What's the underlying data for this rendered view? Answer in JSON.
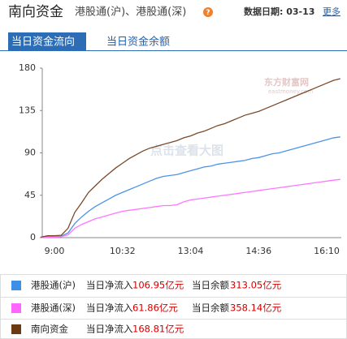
{
  "header": {
    "title": "南向资金",
    "subtitle": "港股通(沪)、港股通(深)",
    "help": "?",
    "date_label": "数据日期: 03-13",
    "more": "更多"
  },
  "tabs": [
    "当日资金流向",
    "当日资金余额"
  ],
  "chart_data": {
    "type": "line",
    "categories": [
      null,
      null,
      "9:00",
      null,
      null,
      null,
      null,
      null,
      null,
      null,
      null,
      null,
      "10:32",
      null,
      null,
      null,
      null,
      null,
      null,
      null,
      null,
      null,
      "13:04",
      null,
      null,
      null,
      null,
      null,
      null,
      null,
      null,
      null,
      "14:36",
      null,
      null,
      null,
      null,
      null,
      null,
      null,
      null,
      null,
      "16:10",
      null,
      null
    ],
    "ylim": [
      0,
      180
    ],
    "yticks": [
      0,
      45,
      90,
      135,
      180
    ],
    "watermark": "东方财富网",
    "watermark_sub": "eastmoney.com",
    "overlay_text": "点击查看大图",
    "series": [
      {
        "name": "港股通(沪)",
        "color": "#4d93ea",
        "values": [
          0.5,
          1,
          1,
          1.5,
          5,
          15,
          22,
          28,
          33,
          37,
          41,
          45,
          48,
          51,
          54,
          57,
          60,
          63,
          65,
          66,
          67,
          69,
          71,
          73,
          75,
          76,
          78,
          79,
          80,
          81,
          82,
          84,
          85,
          87,
          89,
          90,
          92,
          94,
          96,
          98,
          100,
          102,
          104,
          106,
          106.95
        ]
      },
      {
        "name": "港股通(深)",
        "color": "#ff77ff",
        "values": [
          0.5,
          0.5,
          0.5,
          1,
          3,
          10,
          14,
          17,
          20,
          22,
          24,
          26,
          28,
          29,
          30,
          31,
          32,
          33,
          34,
          34,
          35,
          38,
          40,
          41,
          42,
          43,
          44,
          45,
          46,
          47,
          48,
          49,
          50,
          51,
          52,
          53,
          54,
          55,
          56,
          57,
          58,
          59,
          60,
          61,
          61.86
        ]
      },
      {
        "name": "南向资金",
        "color": "#7a4a2a",
        "values": [
          0.5,
          2,
          2,
          2.5,
          10,
          27,
          37,
          48,
          55,
          62,
          68,
          74,
          79,
          84,
          88,
          92,
          95,
          97,
          99,
          101,
          103,
          106,
          108,
          111,
          113,
          116,
          119,
          121,
          124,
          127,
          130,
          132,
          134,
          137,
          140,
          143,
          146,
          149,
          152,
          155,
          158,
          161,
          164,
          167,
          168.81
        ]
      }
    ]
  },
  "summary": [
    {
      "color": "#3d8fe8",
      "inflow_label": "当日净流入",
      "inflow": "106.95亿元",
      "balance_label": "当日余额",
      "balance": "313.05亿元"
    },
    {
      "color": "#ff66ff",
      "inflow_label": "当日净流入",
      "inflow": "61.86亿元",
      "balance_label": "当日余额",
      "balance": "358.14亿元"
    },
    {
      "color": "#6b3a10",
      "inflow_label": "当日净流入",
      "inflow": "168.81亿元"
    }
  ]
}
